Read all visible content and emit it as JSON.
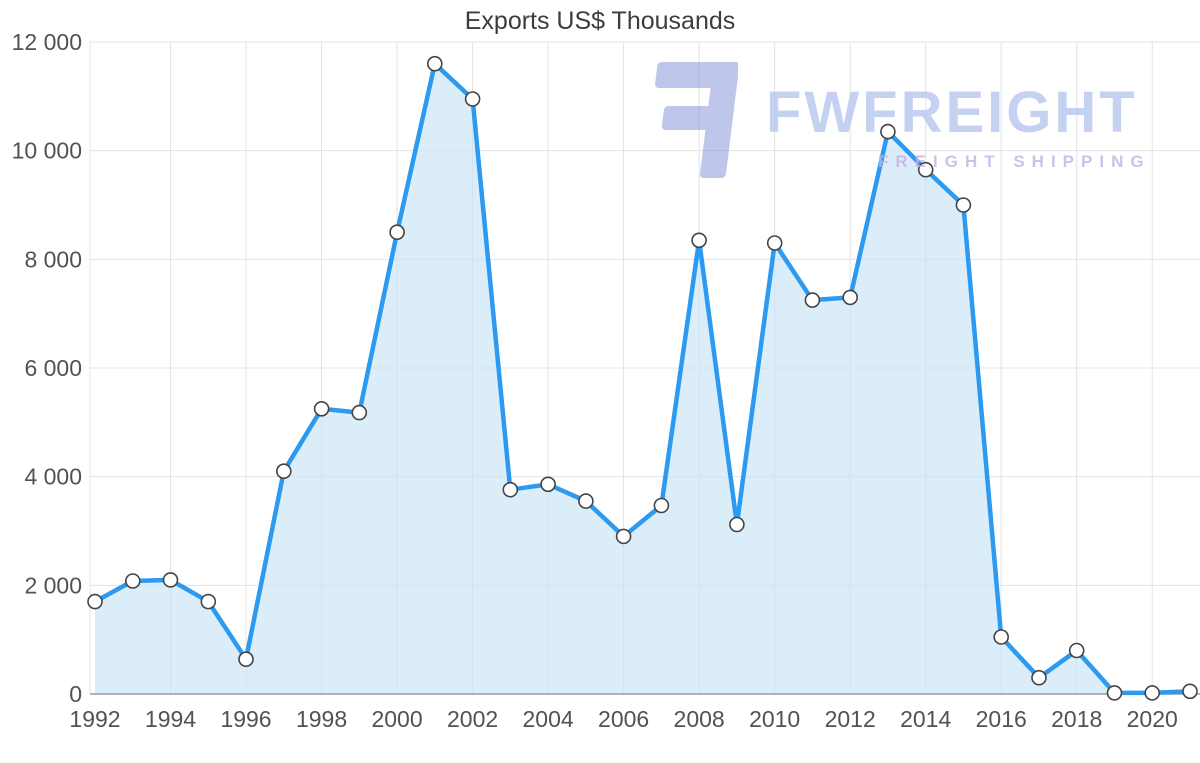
{
  "chart_data": {
    "type": "area",
    "title": "Exports US$ Thousands",
    "x": [
      1992,
      1993,
      1994,
      1995,
      1996,
      1997,
      1998,
      1999,
      2000,
      2001,
      2002,
      2003,
      2004,
      2005,
      2006,
      2007,
      2008,
      2009,
      2010,
      2011,
      2012,
      2013,
      2014,
      2015,
      2016,
      2017,
      2018,
      2019,
      2020,
      2021
    ],
    "series": [
      {
        "name": "Exports US$ Thousands",
        "values": [
          1700,
          2080,
          2100,
          1700,
          640,
          4100,
          5250,
          5180,
          8500,
          11600,
          10950,
          3760,
          3860,
          3550,
          2900,
          3470,
          8350,
          3120,
          8300,
          7250,
          7300,
          10350,
          9650,
          9000,
          1050,
          300,
          800,
          20,
          20,
          50
        ]
      }
    ],
    "ylim": [
      0,
      12000
    ],
    "grid": true,
    "legend": "none",
    "yticks": [
      {
        "value": 0,
        "label": "0"
      },
      {
        "value": 2000,
        "label": "2 000"
      },
      {
        "value": 4000,
        "label": "4 000"
      },
      {
        "value": 6000,
        "label": "6 000"
      },
      {
        "value": 8000,
        "label": "8 000"
      },
      {
        "value": 10000,
        "label": "10 000"
      },
      {
        "value": 12000,
        "label": "12 000"
      }
    ],
    "xticks": [
      {
        "value": 1992,
        "label": "1992"
      },
      {
        "value": 1994,
        "label": "1994"
      },
      {
        "value": 1996,
        "label": "1996"
      },
      {
        "value": 1998,
        "label": "1998"
      },
      {
        "value": 2000,
        "label": "2000"
      },
      {
        "value": 2002,
        "label": "2002"
      },
      {
        "value": 2004,
        "label": "2004"
      },
      {
        "value": 2006,
        "label": "2006"
      },
      {
        "value": 2008,
        "label": "2008"
      },
      {
        "value": 2010,
        "label": "2010"
      },
      {
        "value": 2012,
        "label": "2012"
      },
      {
        "value": 2014,
        "label": "2014"
      },
      {
        "value": 2016,
        "label": "2016"
      },
      {
        "value": 2018,
        "label": "2018"
      },
      {
        "value": 2020,
        "label": "2020"
      }
    ],
    "colors": {
      "line": "#2b9af0",
      "fill": "#c9e3f8",
      "grid": "#e3e3e3",
      "axis": "#9a9a9a",
      "tick_text": "#525252",
      "title_text": "#3d3d3d",
      "marker_fill": "#ffffff",
      "marker_stroke": "#444444"
    }
  },
  "watermark": {
    "brand": "FWFREIGHT",
    "tagline": "FREIGHT SHIPPING",
    "colors": {
      "logo": "#7e8fd8",
      "brand_text": "#b6c6ee",
      "tagline_text": "#c3b2e2"
    }
  }
}
